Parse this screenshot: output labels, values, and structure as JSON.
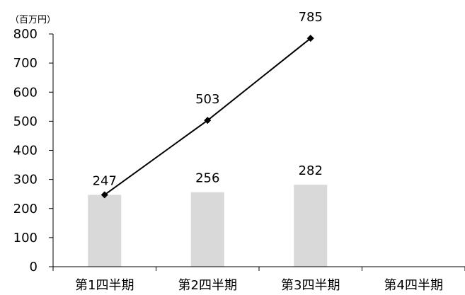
{
  "chart_data": {
    "type": "bar",
    "unit_label": "（百万円）",
    "categories": [
      "第1四半期",
      "第2四半期",
      "第3四半期",
      "第4四半期"
    ],
    "series": [
      {
        "type": "bar",
        "values": [
          247,
          256,
          282,
          null
        ],
        "color": "#d9d9d9",
        "data_labels": [
          "247",
          "256",
          "282"
        ]
      },
      {
        "type": "line",
        "values": [
          247,
          503,
          785,
          null
        ],
        "color": "#000000",
        "marker": "diamond",
        "data_labels": [
          "",
          "503",
          "785"
        ]
      }
    ],
    "ylim": [
      0,
      800
    ],
    "yticks": [
      "0",
      "100",
      "200",
      "300",
      "400",
      "500",
      "600",
      "700",
      "800"
    ],
    "grid": false,
    "legend": "none"
  }
}
